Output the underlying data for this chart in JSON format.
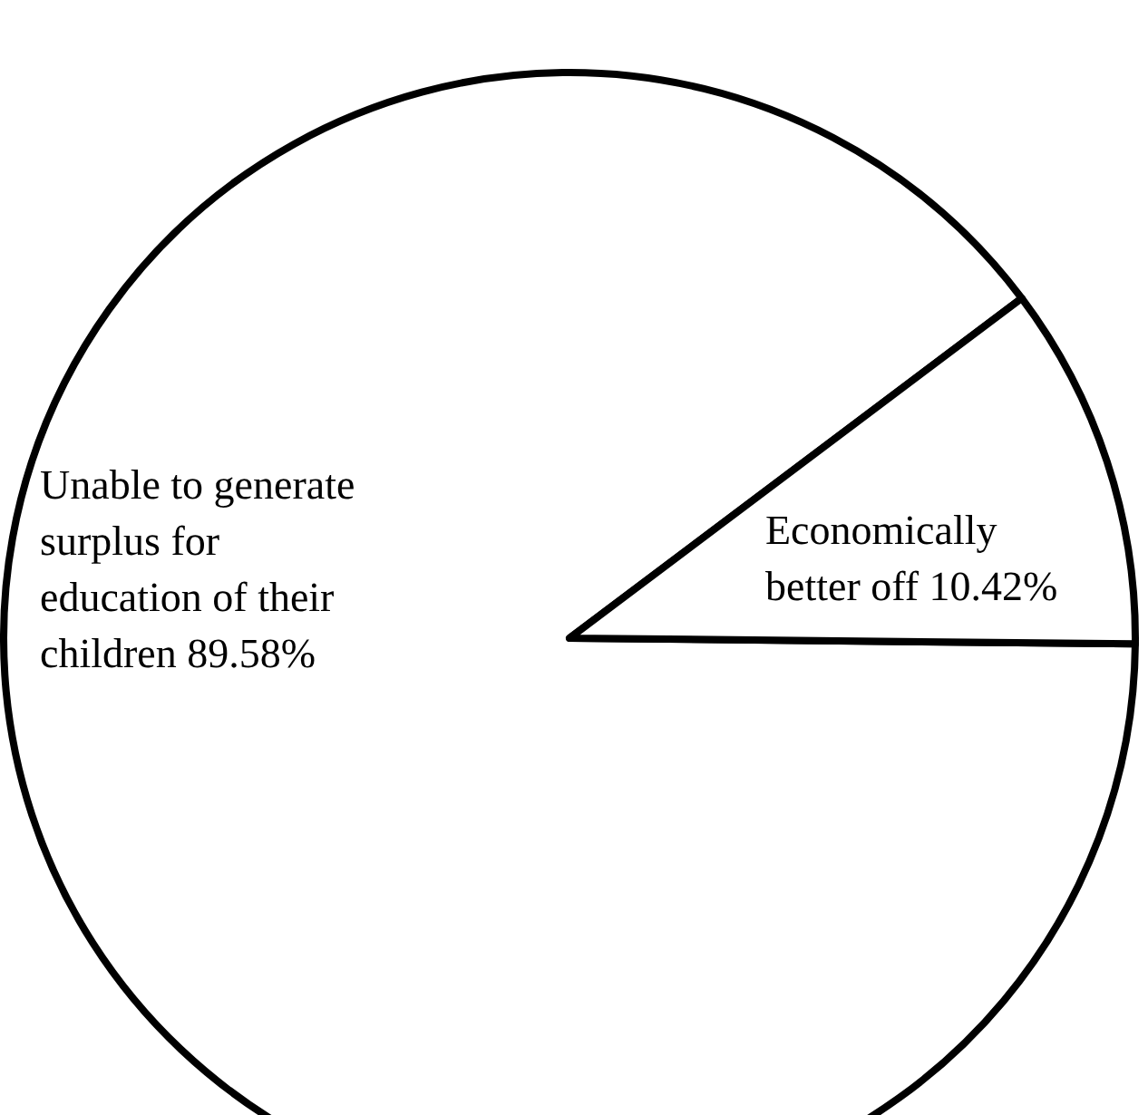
{
  "chart_data": {
    "type": "pie",
    "categories": [
      "Unable to generate surplus for education of their children",
      "Economically better off"
    ],
    "values": [
      89.58,
      10.42
    ],
    "value_labels": [
      "89.58%",
      "10.42%"
    ],
    "colors": [
      "#ffffff",
      "#ffffff"
    ]
  }
}
